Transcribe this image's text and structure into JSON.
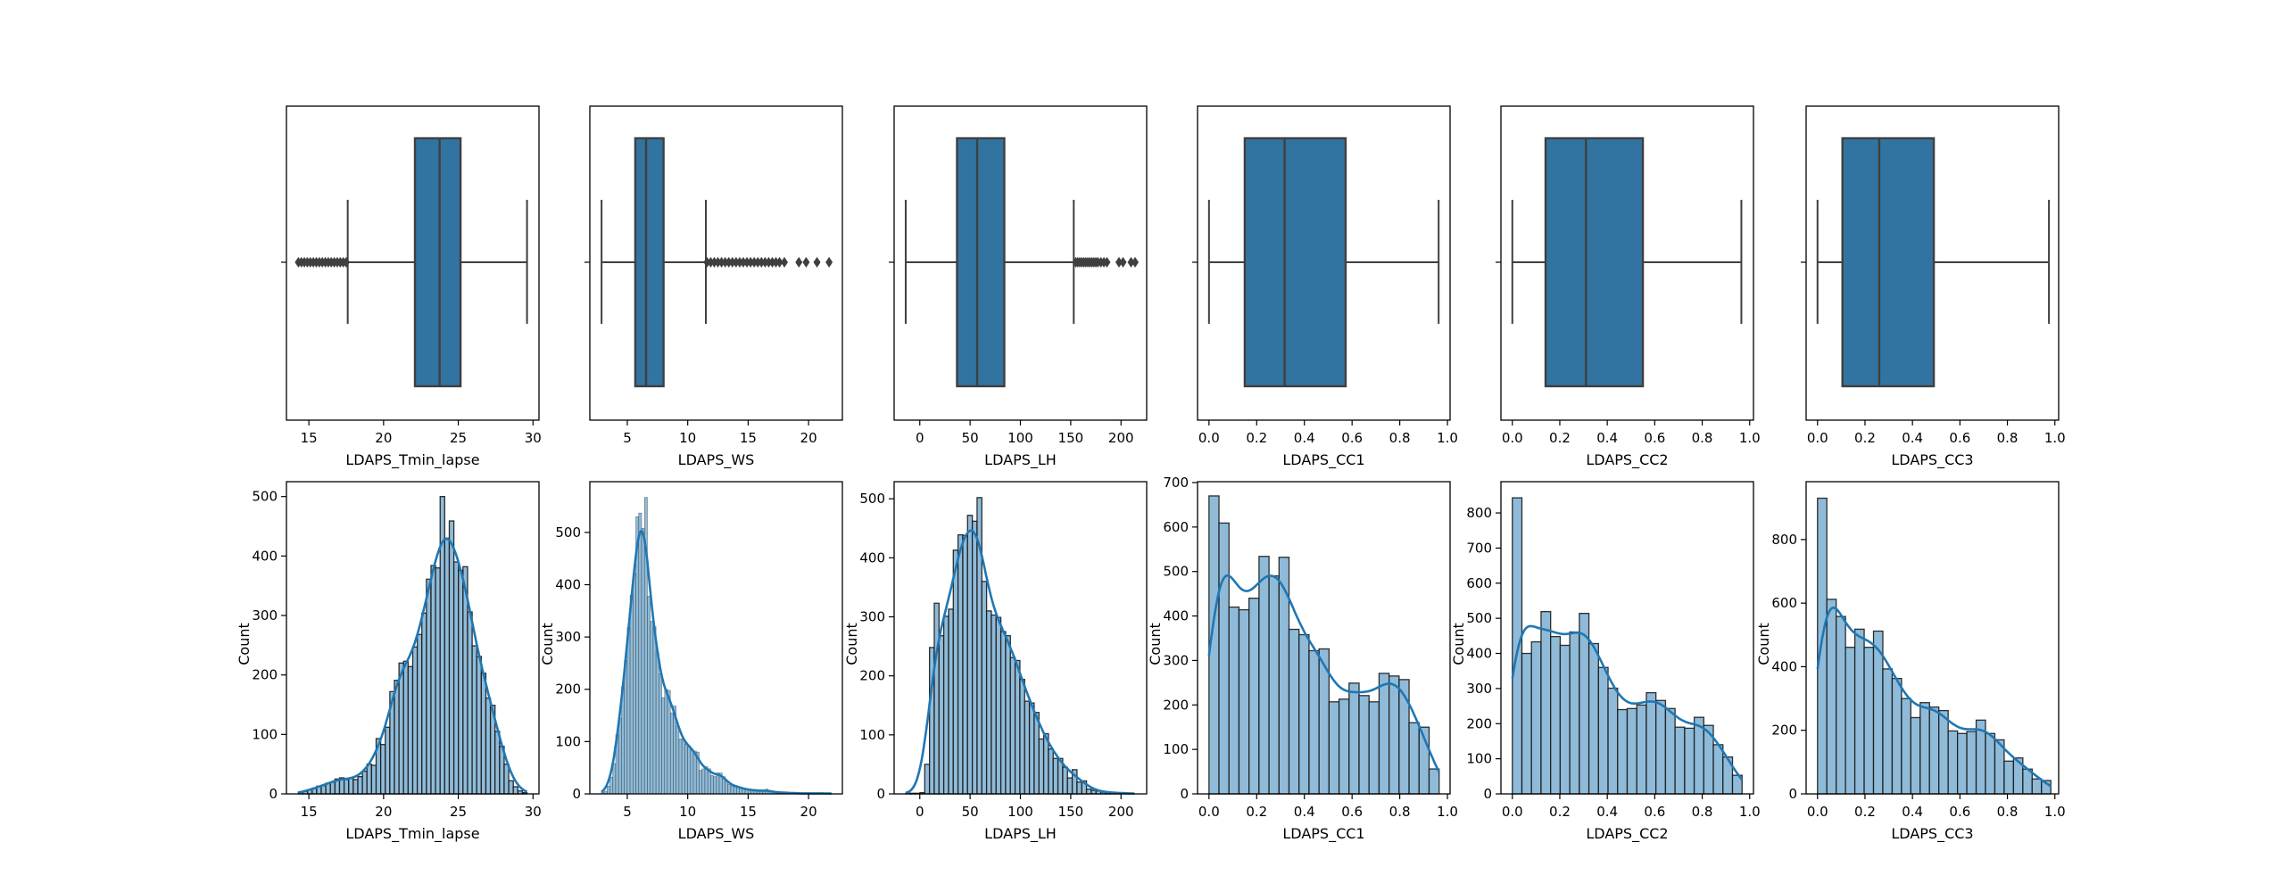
{
  "colors": {
    "box_fill": "#3274a1",
    "box_edge": "#3f3f3f",
    "hist_fill": "#8fbbd9",
    "hist_edge": "#1a1a1a",
    "kde_line": "#1f77b4"
  },
  "chart_data": [
    {
      "type": "box",
      "feature": "LDAPS_Tmin_lapse",
      "xlabel": "LDAPS_Tmin_lapse",
      "xlim": [
        13.5,
        30.4
      ],
      "xticks": [
        "15",
        "20",
        "25",
        "30"
      ],
      "xtick_values": [
        15,
        20,
        25,
        30
      ],
      "whisker_low": 17.6,
      "q1": 22.1,
      "median": 23.75,
      "q3": 25.15,
      "whisker_high": 29.6,
      "outliers": [
        14.3,
        14.5,
        14.7,
        14.9,
        15.1,
        15.3,
        15.5,
        15.7,
        15.9,
        16.1,
        16.3,
        16.5,
        16.7,
        16.9,
        17.1,
        17.3,
        17.5
      ]
    },
    {
      "type": "box",
      "feature": "LDAPS_WS",
      "xlabel": "LDAPS_WS",
      "xlim": [
        1.9,
        22.8
      ],
      "xticks": [
        "5",
        "10",
        "15",
        "20"
      ],
      "xtick_values": [
        5,
        10,
        15,
        20
      ],
      "whisker_low": 2.87,
      "q1": 5.66,
      "median": 6.55,
      "q3": 8.0,
      "whisker_high": 11.5,
      "outliers": [
        11.6,
        11.9,
        12.2,
        12.5,
        12.8,
        13.1,
        13.4,
        13.7,
        14.0,
        14.3,
        14.6,
        14.9,
        15.2,
        15.5,
        15.8,
        16.1,
        16.4,
        16.7,
        17.0,
        17.3,
        17.6,
        18.0,
        19.2,
        19.8,
        20.7,
        21.7
      ]
    },
    {
      "type": "box",
      "feature": "LDAPS_LH",
      "xlabel": "LDAPS_LH",
      "xlim": [
        -25.5,
        225.5
      ],
      "xticks": [
        "0",
        "50",
        "100",
        "150",
        "200"
      ],
      "xtick_values": [
        0,
        50,
        100,
        150,
        200
      ],
      "whisker_low": -14,
      "q1": 37,
      "median": 57,
      "q3": 84,
      "whisker_high": 153,
      "outliers": [
        155,
        157,
        159,
        161,
        163,
        165,
        167,
        169,
        171,
        173,
        175,
        177,
        180,
        183,
        186,
        198,
        202,
        210,
        214
      ]
    },
    {
      "type": "box",
      "feature": "LDAPS_CC1",
      "xlabel": "LDAPS_CC1",
      "xlim": [
        -0.048,
        1.011
      ],
      "xticks": [
        "0.0",
        "0.2",
        "0.4",
        "0.6",
        "0.8",
        "1.0"
      ],
      "xtick_values": [
        0,
        0.2,
        0.4,
        0.6,
        0.8,
        1.0
      ],
      "whisker_low": 0.0,
      "q1": 0.15,
      "median": 0.317,
      "q3": 0.573,
      "whisker_high": 0.963,
      "outliers": []
    },
    {
      "type": "box",
      "feature": "LDAPS_CC2",
      "xlabel": "LDAPS_CC2",
      "xlim": [
        -0.048,
        1.016
      ],
      "xticks": [
        "0.0",
        "0.2",
        "0.4",
        "0.6",
        "0.8",
        "1.0"
      ],
      "xtick_values": [
        0,
        0.2,
        0.4,
        0.6,
        0.8,
        1.0
      ],
      "whisker_low": 0.0,
      "q1": 0.14,
      "median": 0.31,
      "q3": 0.55,
      "whisker_high": 0.965,
      "outliers": []
    },
    {
      "type": "box",
      "feature": "LDAPS_CC3",
      "xlabel": "LDAPS_CC3",
      "xlim": [
        -0.048,
        1.016
      ],
      "xticks": [
        "0.0",
        "0.2",
        "0.4",
        "0.6",
        "0.8",
        "1.0"
      ],
      "xtick_values": [
        0,
        0.2,
        0.4,
        0.6,
        0.8,
        1.0
      ],
      "whisker_low": 0.0,
      "q1": 0.105,
      "median": 0.26,
      "q3": 0.49,
      "whisker_high": 0.975,
      "outliers": []
    },
    {
      "type": "bar",
      "feature": "LDAPS_Tmin_lapse",
      "xlabel": "LDAPS_Tmin_lapse",
      "ylabel": "Count",
      "xlim": [
        13.5,
        30.4
      ],
      "ylim": [
        0,
        525
      ],
      "xticks": [
        "15",
        "20",
        "25",
        "30"
      ],
      "xtick_values": [
        15,
        20,
        25,
        30
      ],
      "yticks": [
        "0",
        "100",
        "200",
        "300",
        "400",
        "500"
      ],
      "ytick_values": [
        0,
        100,
        200,
        300,
        400,
        500
      ],
      "bin_start": 14.3,
      "bin_end": 29.6,
      "kde": true,
      "values": [
        3,
        4,
        7,
        9,
        13,
        14,
        18,
        20,
        25,
        27,
        24,
        26,
        24,
        29,
        38,
        50,
        48,
        93,
        83,
        112,
        172,
        191,
        220,
        223,
        214,
        247,
        268,
        304,
        361,
        384,
        380,
        500,
        430,
        459,
        390,
        376,
        382,
        306,
        249,
        231,
        203,
        161,
        149,
        105,
        80,
        50,
        22,
        12,
        5,
        2
      ]
    },
    {
      "type": "bar",
      "feature": "LDAPS_WS",
      "xlabel": "LDAPS_WS",
      "ylabel": "Count",
      "xlim": [
        1.9,
        22.8
      ],
      "ylim": [
        0,
        597
      ],
      "xticks": [
        "5",
        "10",
        "15",
        "20"
      ],
      "xtick_values": [
        5,
        10,
        15,
        20
      ],
      "yticks": [
        "0",
        "100",
        "200",
        "300",
        "400",
        "500"
      ],
      "ytick_values": [
        0,
        100,
        200,
        300,
        400,
        500
      ],
      "bin_start": 2.85,
      "bin_end": 21.9,
      "kde": true,
      "values": [
        3,
        5,
        15,
        32,
        58,
        113,
        145,
        205,
        255,
        318,
        380,
        422,
        530,
        537,
        508,
        567,
        378,
        330,
        320,
        270,
        230,
        184,
        200,
        198,
        155,
        168,
        130,
        105,
        105,
        95,
        92,
        83,
        82,
        80,
        45,
        48,
        52,
        48,
        35,
        33,
        40,
        40,
        33,
        25,
        18,
        15,
        16,
        13,
        12,
        10,
        8,
        8,
        7,
        7,
        6,
        6,
        5,
        9,
        5,
        4,
        3,
        3,
        3,
        2,
        2,
        2,
        2,
        1,
        1,
        1,
        1,
        1,
        1,
        1,
        1,
        1,
        1,
        1,
        1,
        1
      ]
    },
    {
      "type": "bar",
      "feature": "LDAPS_LH",
      "xlabel": "LDAPS_LH",
      "ylabel": "Count",
      "xlim": [
        -25.5,
        225.5
      ],
      "ylim": [
        0,
        529
      ],
      "xticks": [
        "0",
        "50",
        "100",
        "150",
        "200"
      ],
      "xtick_values": [
        0,
        50,
        100,
        150,
        200
      ],
      "yticks": [
        "0",
        "100",
        "200",
        "300",
        "400",
        "500"
      ],
      "ytick_values": [
        0,
        100,
        200,
        300,
        400,
        500
      ],
      "bin_start": -14,
      "bin_end": 213,
      "kde": true,
      "values": [
        1,
        1,
        1,
        2,
        50,
        248,
        323,
        268,
        301,
        313,
        413,
        439,
        438,
        472,
        462,
        502,
        360,
        310,
        303,
        299,
        275,
        268,
        231,
        226,
        194,
        157,
        154,
        138,
        93,
        102,
        76,
        60,
        60,
        45,
        27,
        41,
        20,
        22,
        8,
        6,
        5,
        3,
        2,
        2,
        2,
        1,
        1,
        1
      ]
    },
    {
      "type": "bar",
      "feature": "LDAPS_CC1",
      "xlabel": "LDAPS_CC1",
      "ylabel": "Count",
      "xlim": [
        -0.048,
        1.011
      ],
      "ylim": [
        0,
        702
      ],
      "xticks": [
        "0.0",
        "0.2",
        "0.4",
        "0.6",
        "0.8",
        "1.0"
      ],
      "xtick_values": [
        0,
        0.2,
        0.4,
        0.6,
        0.8,
        1.0
      ],
      "yticks": [
        "0",
        "100",
        "200",
        "300",
        "400",
        "500",
        "600",
        "700"
      ],
      "ytick_values": [
        0,
        100,
        200,
        300,
        400,
        500,
        600,
        700
      ],
      "bin_start": 0,
      "bin_end": 0.965,
      "kde": true,
      "values": [
        670,
        609,
        420,
        414,
        440,
        534,
        490,
        532,
        370,
        358,
        322,
        326,
        207,
        213,
        249,
        221,
        207,
        271,
        265,
        257,
        160,
        150,
        56
      ]
    },
    {
      "type": "bar",
      "feature": "LDAPS_CC2",
      "xlabel": "LDAPS_CC2",
      "ylabel": "Count",
      "xlim": [
        -0.048,
        1.016
      ],
      "ylim": [
        0,
        889
      ],
      "xticks": [
        "0.0",
        "0.2",
        "0.4",
        "0.6",
        "0.8",
        "1.0"
      ],
      "xtick_values": [
        0,
        0.2,
        0.4,
        0.6,
        0.8,
        1.0
      ],
      "yticks": [
        "0",
        "100",
        "200",
        "300",
        "400",
        "500",
        "600",
        "700",
        "800"
      ],
      "ytick_values": [
        0,
        100,
        200,
        300,
        400,
        500,
        600,
        700,
        800
      ],
      "bin_start": 0,
      "bin_end": 0.968,
      "kde": true,
      "values": [
        843,
        400,
        433,
        519,
        448,
        423,
        461,
        514,
        428,
        360,
        301,
        240,
        243,
        253,
        288,
        266,
        243,
        190,
        187,
        218,
        195,
        140,
        105,
        53
      ]
    },
    {
      "type": "bar",
      "feature": "LDAPS_CC3",
      "xlabel": "LDAPS_CC3",
      "ylabel": "Count",
      "xlim": [
        -0.048,
        1.016
      ],
      "ylim": [
        0,
        982
      ],
      "xticks": [
        "0.0",
        "0.2",
        "0.4",
        "0.6",
        "0.8",
        "1.0"
      ],
      "xtick_values": [
        0,
        0.2,
        0.4,
        0.6,
        0.8,
        1.0
      ],
      "yticks": [
        "0",
        "200",
        "400",
        "600",
        "800"
      ],
      "ytick_values": [
        0,
        200,
        400,
        600,
        800
      ],
      "bin_start": 0,
      "bin_end": 0.983,
      "kde": true,
      "values": [
        930,
        612,
        558,
        461,
        518,
        461,
        512,
        393,
        363,
        300,
        240,
        287,
        273,
        262,
        198,
        190,
        196,
        232,
        190,
        170,
        103,
        113,
        78,
        47,
        42
      ]
    }
  ]
}
